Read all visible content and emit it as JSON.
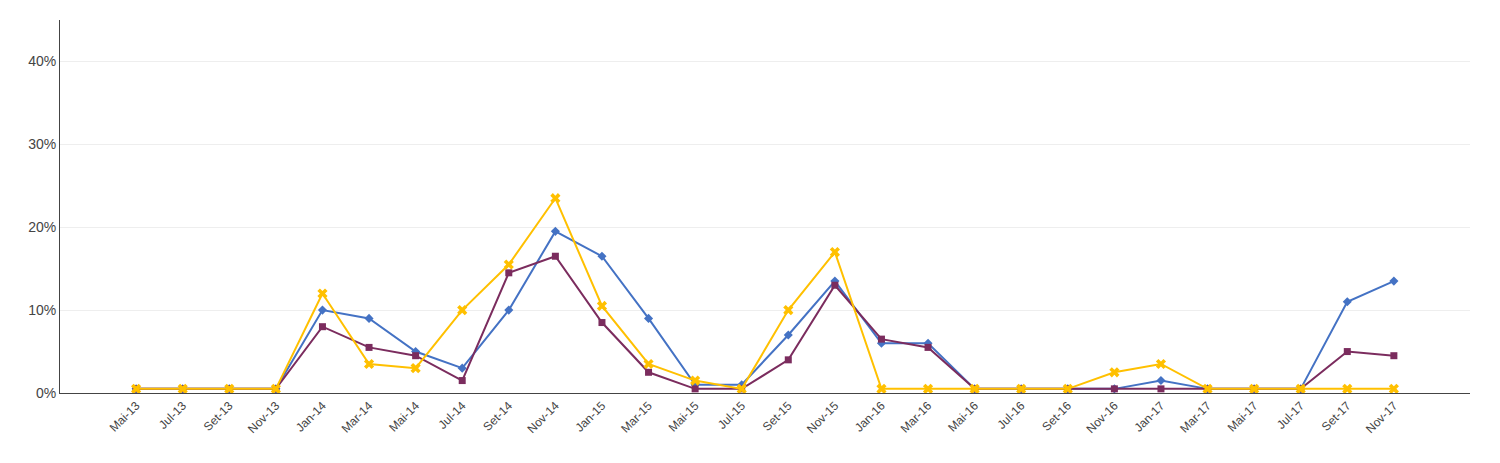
{
  "chart_data": {
    "type": "line",
    "categories": [
      "Mai-13",
      "Jul-13",
      "Set-13",
      "Nov-13",
      "Jan-14",
      "Mar-14",
      "Mai-14",
      "Jul-14",
      "Set-14",
      "Nov-14",
      "Jan-15",
      "Mar-15",
      "Mai-15",
      "Jul-15",
      "Set-15",
      "Nov-15",
      "Jan-16",
      "Mar-16",
      "Mai-16",
      "Jul-16",
      "Set-16",
      "Nov-16",
      "Jan-17",
      "Mar-17",
      "Mai-17",
      "Jul-17",
      "Set-17",
      "Nov-17"
    ],
    "series": [
      {
        "color": "#4472C4",
        "marker": "diamond",
        "values": [
          0.005,
          0.005,
          0.005,
          0.005,
          0.1,
          0.09,
          0.05,
          0.03,
          0.1,
          0.195,
          0.165,
          0.09,
          0.01,
          0.01,
          0.07,
          0.135,
          0.06,
          0.06,
          0.005,
          0.005,
          0.005,
          0.005,
          0.015,
          0.005,
          0.005,
          0.005,
          0.11,
          0.135
        ]
      },
      {
        "color": "#7B2C5E",
        "marker": "square",
        "values": [
          0.005,
          0.005,
          0.005,
          0.005,
          0.08,
          0.055,
          0.045,
          0.015,
          0.145,
          0.165,
          0.085,
          0.025,
          0.005,
          0.005,
          0.04,
          0.13,
          0.065,
          0.055,
          0.005,
          0.005,
          0.005,
          0.005,
          0.005,
          0.005,
          0.005,
          0.005,
          0.05,
          0.045
        ]
      },
      {
        "color": "#FFC000",
        "marker": "x",
        "values": [
          0.005,
          0.005,
          0.005,
          0.005,
          0.12,
          0.035,
          0.03,
          0.1,
          0.155,
          0.235,
          0.105,
          0.035,
          0.015,
          0.005,
          0.1,
          0.17,
          0.005,
          0.005,
          0.005,
          0.005,
          0.005,
          0.025,
          0.035,
          0.005,
          0.005,
          0.005,
          0.005,
          0.005
        ]
      }
    ],
    "ylim": [
      0.0,
      0.45
    ],
    "yticks": [
      {
        "value": 0.0,
        "label": "0%"
      },
      {
        "value": 0.1,
        "label": "10%"
      },
      {
        "value": 0.2,
        "label": "20%"
      },
      {
        "value": 0.3,
        "label": "30%"
      },
      {
        "value": 0.4,
        "label": "40%"
      }
    ],
    "grid": true
  }
}
